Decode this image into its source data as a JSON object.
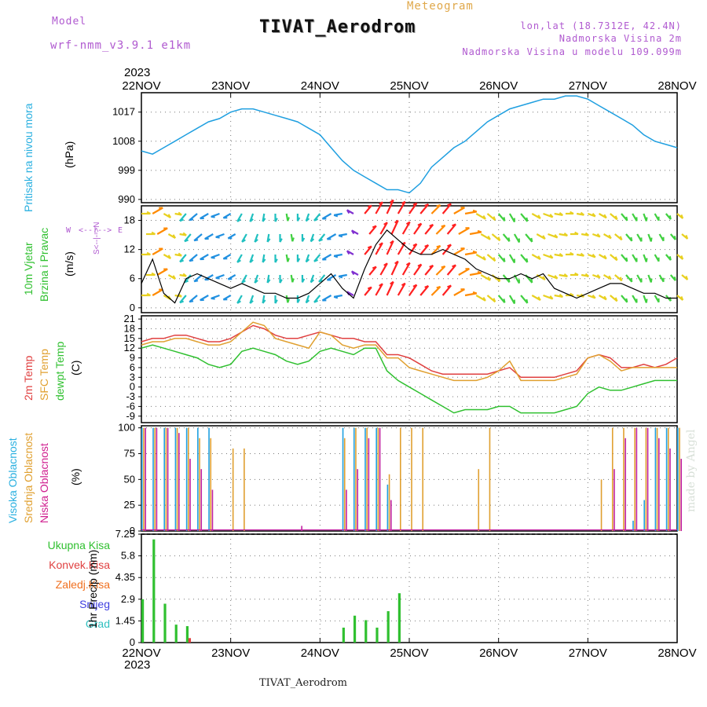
{
  "header": {
    "model_label": "Model",
    "model_name": "wrf-nmm_v3.9.1 e1km",
    "title": "TIVAT_Aerodrom",
    "subtitle": "Meteogram",
    "lonlat": "lon,lat (18.7312E, 42.4N)",
    "elev": "Nadmorska Visina 2m",
    "elev_model": "Nadmorska Visina u modelu 109.099m",
    "year_top": "2023",
    "year_bottom": "2023",
    "footer": "TIVAT_Aerodrom",
    "credit": "made by Angel"
  },
  "time_axis": {
    "labels": [
      "22NOV",
      "23NOV",
      "24NOV",
      "25NOV",
      "26NOV",
      "27NOV",
      "28NOV"
    ],
    "start_hour": 0,
    "end_hour": 144
  },
  "colors": {
    "pressure": "#1f9fe0",
    "temp2m": "#e04040",
    "sfc": "#e0a030",
    "dewpt": "#30c030",
    "high": "#20a0e0",
    "mid": "#e0a030",
    "low": "#c020a0",
    "total": "#30c030",
    "conv": "#e04040",
    "frozen": "#f07020",
    "snow": "#4040e0",
    "grad": "#30c0c0",
    "speed_line": "#000000",
    "accent_violet": "#b05ad0"
  },
  "panels": {
    "pressure": {
      "label": "Pritisak na nivou mora",
      "unit": "(hPa)",
      "ticks": [
        "990",
        "999",
        "1008",
        "1017"
      ],
      "range": [
        989,
        1023
      ]
    },
    "wind": {
      "label1": "10m Vjetar",
      "label2": "Brzina i Pravac",
      "unit": "(m/s)",
      "ticks": [
        "0",
        "6",
        "12",
        "18"
      ],
      "range": [
        -1,
        21
      ],
      "compass": {
        "w": "W",
        "e": "E",
        "n": "N",
        "s": "S"
      }
    },
    "temp": {
      "label_2m": "2m Temp",
      "label_sfc": "SFC Temp",
      "label_dew": "dewpt Temp",
      "unit": "(C)",
      "ticks": [
        "-9",
        "-6",
        "-3",
        "0",
        "3",
        "6",
        "9",
        "12",
        "15",
        "18",
        "21"
      ],
      "range": [
        -11,
        22
      ]
    },
    "cloud": {
      "label_high": "Visoka Oblacnost",
      "label_mid": "Srednja Oblacnost",
      "label_low": "Niska Oblacnost",
      "unit": "(%)",
      "ticks": [
        "0",
        "25",
        "50",
        "75",
        "100"
      ],
      "range": [
        0,
        102
      ]
    },
    "precip": {
      "unit": "1hr Precip (mm)",
      "ticks": [
        "0",
        "1.45",
        "2.9",
        "4.35",
        "5.8",
        "7.25"
      ],
      "range": [
        0,
        7.25
      ],
      "legend": [
        "Ukupna Kisa",
        "Konvek.Kisa",
        "Zaledj.Kisa",
        "Snijeg",
        "Grad"
      ]
    }
  },
  "chart_data": [
    {
      "type": "line",
      "title": "Pritisak na nivou mora",
      "ylabel": "(hPa)",
      "x": [
        0,
        3,
        6,
        9,
        12,
        15,
        18,
        21,
        24,
        27,
        30,
        33,
        36,
        39,
        42,
        45,
        48,
        51,
        54,
        57,
        60,
        63,
        66,
        69,
        72,
        75,
        78,
        81,
        84,
        87,
        90,
        93,
        96,
        99,
        102,
        105,
        108,
        111,
        114,
        117,
        120,
        123,
        126,
        129,
        132,
        135,
        138,
        141,
        144
      ],
      "series": [
        {
          "name": "",
          "values": [
            1005,
            1004,
            1006,
            1008,
            1010,
            1012,
            1014,
            1015,
            1017,
            1018,
            1018,
            1017,
            1016,
            1015,
            1014,
            1012,
            1010,
            1006,
            1002,
            999,
            997,
            995,
            993,
            993,
            992,
            995,
            1000,
            1003,
            1006,
            1008,
            1011,
            1014,
            1016,
            1018,
            1019,
            1020,
            1021,
            1021,
            1022,
            1022,
            1021,
            1019,
            1017,
            1015,
            1013,
            1010,
            1008,
            1007,
            1006
          ]
        }
      ]
    },
    {
      "type": "line",
      "title": "10m Vjetar Brzina i Pravac",
      "ylabel": "(m/s)",
      "x": [
        0,
        3,
        6,
        9,
        12,
        15,
        18,
        21,
        24,
        27,
        30,
        33,
        36,
        39,
        42,
        45,
        48,
        51,
        54,
        57,
        60,
        63,
        66,
        69,
        72,
        75,
        78,
        81,
        84,
        87,
        90,
        93,
        96,
        99,
        102,
        105,
        108,
        111,
        114,
        117,
        120,
        123,
        126,
        129,
        132,
        135,
        138,
        141,
        144
      ],
      "series": [
        {
          "name": "speed",
          "values": [
            5,
            10,
            3,
            1,
            6,
            7,
            6,
            5,
            4,
            5,
            4,
            3,
            3,
            2,
            2,
            3,
            5,
            7,
            4,
            2,
            8,
            13,
            16,
            14,
            12,
            11,
            11,
            12,
            11,
            10,
            8,
            7,
            6,
            6,
            7,
            6,
            7,
            4,
            3,
            2,
            3,
            4,
            5,
            5,
            4,
            3,
            3,
            2,
            2
          ],
          "directions": [
            90,
            60,
            120,
            100,
            220,
            230,
            240,
            250,
            240,
            210,
            200,
            190,
            180,
            170,
            180,
            200,
            220,
            240,
            260,
            300,
            40,
            30,
            25,
            30,
            35,
            40,
            45,
            40,
            60,
            80,
            120,
            130,
            140,
            150,
            140,
            120,
            110,
            100,
            90,
            100,
            110,
            120,
            130,
            140,
            150,
            160,
            150,
            140,
            130
          ]
        }
      ]
    },
    {
      "type": "line",
      "title": "2m Temp / SFC Temp / dewpt Temp",
      "ylabel": "(C)",
      "x": [
        0,
        3,
        6,
        9,
        12,
        15,
        18,
        21,
        24,
        27,
        30,
        33,
        36,
        39,
        42,
        45,
        48,
        51,
        54,
        57,
        60,
        63,
        66,
        69,
        72,
        75,
        78,
        81,
        84,
        87,
        90,
        93,
        96,
        99,
        102,
        105,
        108,
        111,
        114,
        117,
        120,
        123,
        126,
        129,
        132,
        135,
        138,
        141,
        144
      ],
      "series": [
        {
          "name": "2m Temp",
          "values": [
            14,
            15,
            15,
            16,
            16,
            15,
            14,
            14,
            15,
            17,
            19,
            18,
            16,
            15,
            15,
            16,
            17,
            16,
            15,
            15,
            14,
            14,
            10,
            10,
            9,
            7,
            5,
            4,
            4,
            4,
            4,
            4,
            5,
            6,
            3,
            3,
            3,
            3,
            4,
            5,
            9,
            10,
            9,
            6,
            6,
            7,
            6,
            7,
            9
          ]
        },
        {
          "name": "SFC Temp",
          "values": [
            13,
            14,
            14,
            15,
            15,
            14,
            13,
            13,
            14,
            17,
            20,
            19,
            15,
            14,
            13,
            12,
            17,
            16,
            13,
            12,
            13,
            13,
            9,
            9,
            6,
            5,
            4,
            3,
            2,
            2,
            2,
            3,
            5,
            8,
            2,
            2,
            2,
            2,
            3,
            4,
            9,
            10,
            8,
            5,
            6,
            6,
            6,
            6,
            6
          ]
        },
        {
          "name": "dewpt Temp",
          "values": [
            12,
            13,
            12,
            11,
            10,
            9,
            7,
            6,
            7,
            11,
            12,
            11,
            10,
            8,
            7,
            8,
            11,
            12,
            11,
            10,
            12,
            12,
            5,
            2,
            0,
            -2,
            -4,
            -6,
            -8,
            -7,
            -7,
            -7,
            -6,
            -6,
            -8,
            -8,
            -8,
            -8,
            -7,
            -6,
            -2,
            0,
            -1,
            -1,
            0,
            1,
            2,
            2,
            2
          ]
        }
      ]
    },
    {
      "type": "bar",
      "title": "Visoka / Srednja / Niska Oblacnost",
      "ylabel": "(%)",
      "x": [
        0,
        3,
        6,
        9,
        12,
        15,
        18,
        21,
        24,
        27,
        30,
        33,
        36,
        39,
        42,
        45,
        48,
        51,
        54,
        57,
        60,
        63,
        66,
        69,
        72,
        75,
        78,
        81,
        84,
        87,
        90,
        93,
        96,
        99,
        102,
        105,
        108,
        111,
        114,
        117,
        120,
        123,
        126,
        129,
        132,
        135,
        138,
        141,
        144
      ],
      "series": [
        {
          "name": "Visoka Oblacnost",
          "values": [
            100,
            100,
            100,
            100,
            100,
            100,
            100,
            0,
            0,
            0,
            0,
            0,
            0,
            0,
            0,
            0,
            0,
            0,
            100,
            100,
            100,
            100,
            45,
            0,
            0,
            0,
            0,
            0,
            0,
            0,
            0,
            0,
            0,
            0,
            0,
            0,
            0,
            0,
            0,
            0,
            0,
            0,
            0,
            0,
            10,
            30,
            100,
            100,
            100
          ]
        },
        {
          "name": "Srednja Oblacnost",
          "values": [
            100,
            100,
            100,
            100,
            100,
            90,
            90,
            0,
            80,
            80,
            0,
            0,
            0,
            0,
            0,
            0,
            0,
            0,
            90,
            100,
            100,
            100,
            55,
            100,
            100,
            100,
            0,
            0,
            0,
            0,
            60,
            100,
            0,
            0,
            0,
            0,
            0,
            0,
            0,
            0,
            0,
            50,
            100,
            100,
            100,
            100,
            100,
            100,
            100
          ]
        },
        {
          "name": "Niska Oblacnost",
          "values": [
            100,
            100,
            100,
            95,
            70,
            60,
            40,
            0,
            0,
            0,
            0,
            0,
            0,
            0,
            5,
            0,
            0,
            0,
            40,
            60,
            90,
            100,
            30,
            0,
            0,
            0,
            0,
            0,
            0,
            0,
            0,
            0,
            0,
            0,
            0,
            0,
            0,
            0,
            0,
            0,
            0,
            0,
            60,
            90,
            100,
            100,
            90,
            80,
            70
          ]
        }
      ]
    },
    {
      "type": "bar",
      "title": "1hr Precip",
      "ylabel": "(mm)",
      "x": [
        0,
        3,
        6,
        9,
        12,
        15,
        18,
        21,
        24,
        27,
        30,
        33,
        36,
        39,
        42,
        45,
        48,
        51,
        54,
        57,
        60,
        63,
        66,
        69,
        72,
        75,
        78,
        81,
        84,
        87,
        90,
        93,
        96,
        99,
        102,
        105,
        108,
        111,
        114,
        117,
        120,
        123,
        126,
        129,
        132,
        135,
        138,
        141,
        144
      ],
      "series": [
        {
          "name": "Ukupna Kisa",
          "values": [
            2.9,
            6.9,
            2.6,
            1.2,
            1.1,
            0,
            0,
            0,
            0,
            0,
            0,
            0,
            0,
            0,
            0,
            0,
            0,
            0,
            1.0,
            1.8,
            1.5,
            1.0,
            2.1,
            3.3,
            0,
            0,
            0,
            0,
            0,
            0,
            0,
            0,
            0,
            0,
            0,
            0,
            0,
            0,
            0,
            0,
            0,
            0,
            0,
            0,
            0,
            0,
            0,
            0,
            0
          ]
        },
        {
          "name": "Konvek.Kisa",
          "values": [
            0,
            0,
            0,
            0,
            0.3,
            0,
            0,
            0,
            0,
            0,
            0,
            0,
            0,
            0,
            0,
            0,
            0,
            0,
            0,
            0,
            0,
            0,
            0,
            0,
            0,
            0,
            0,
            0,
            0,
            0,
            0,
            0,
            0,
            0,
            0,
            0,
            0,
            0,
            0,
            0,
            0,
            0,
            0,
            0,
            0,
            0,
            0,
            0,
            0
          ]
        },
        {
          "name": "Zaledj.Kisa",
          "values": [
            0,
            0,
            0,
            0,
            0,
            0,
            0,
            0,
            0,
            0,
            0,
            0,
            0,
            0,
            0,
            0,
            0,
            0,
            0,
            0,
            0,
            0,
            0,
            0,
            0,
            0,
            0,
            0,
            0,
            0,
            0,
            0,
            0,
            0,
            0,
            0,
            0,
            0,
            0,
            0,
            0,
            0,
            0,
            0,
            0,
            0,
            0,
            0,
            0
          ]
        },
        {
          "name": "Snijeg",
          "values": [
            0,
            0,
            0,
            0,
            0,
            0,
            0,
            0,
            0,
            0,
            0,
            0,
            0,
            0,
            0,
            0,
            0,
            0,
            0,
            0,
            0,
            0,
            0,
            0,
            0,
            0,
            0,
            0,
            0,
            0,
            0,
            0,
            0,
            0,
            0,
            0,
            0,
            0,
            0,
            0,
            0,
            0,
            0,
            0,
            0,
            0,
            0,
            0,
            0
          ]
        },
        {
          "name": "Grad",
          "values": [
            0,
            0,
            0,
            0,
            0,
            0,
            0,
            0,
            0,
            0,
            0,
            0,
            0,
            0,
            0,
            0,
            0,
            0,
            0,
            0,
            0,
            0,
            0,
            0,
            0,
            0,
            0,
            0,
            0,
            0,
            0,
            0,
            0,
            0,
            0,
            0,
            0,
            0,
            0,
            0,
            0,
            0,
            0,
            0,
            0,
            0,
            0,
            0,
            0
          ]
        }
      ]
    }
  ]
}
